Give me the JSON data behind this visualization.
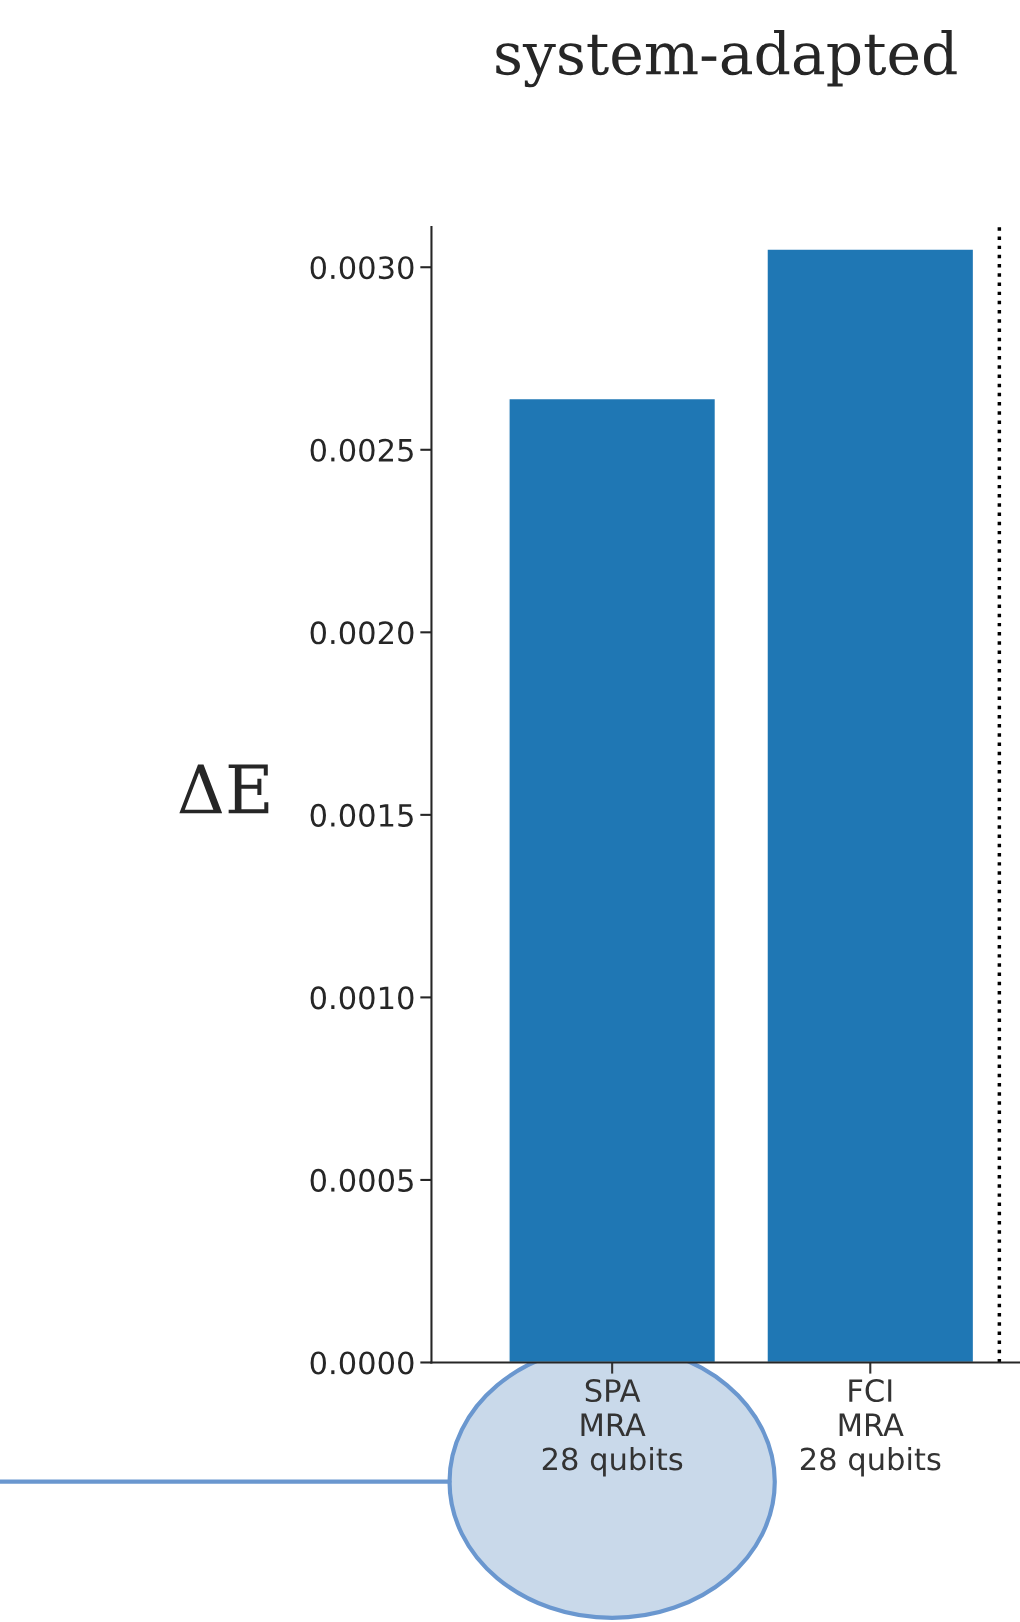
{
  "chart_data": {
    "type": "bar",
    "title": "system-adapted",
    "ylabel": "ΔE",
    "categories": [
      "SPA\nMRA\n28 qubits",
      "FCI\nMRA\n28 qubits"
    ],
    "values": [
      0.00264,
      0.00305
    ],
    "color": "#1f77b4",
    "ylim": [
      0,
      0.00311
    ],
    "yticks": [
      {
        "value": 0,
        "label": "0.0000"
      },
      {
        "value": 0.0005,
        "label": "0.0005"
      },
      {
        "value": 0.001,
        "label": "0.0010"
      },
      {
        "value": 0.0015,
        "label": "0.0015"
      },
      {
        "value": 0.002,
        "label": "0.0020"
      },
      {
        "value": 0.0025,
        "label": "0.0025"
      },
      {
        "value": 0.003,
        "label": "0.0030"
      }
    ],
    "grid": false
  }
}
